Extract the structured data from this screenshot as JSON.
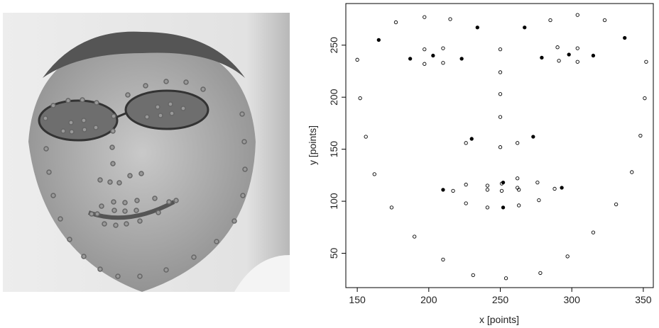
{
  "chart_data": {
    "type": "scatter",
    "xlabel": "x [points]",
    "ylabel": "y [points]",
    "xlim": [
      142,
      357
    ],
    "ylim": [
      17,
      290
    ],
    "xticks": [
      150,
      200,
      250,
      300,
      350
    ],
    "yticks": [
      50,
      100,
      150,
      200,
      250
    ],
    "series": [
      {
        "color": "#000000",
        "marker": "open",
        "x": [
          150,
          152,
          156,
          162,
          174,
          190,
          210,
          231,
          254,
          278,
          297,
          315,
          331,
          342,
          348,
          351,
          352,
          177,
          197,
          215,
          285,
          304,
          323,
          197,
          197,
          210,
          210,
          250,
          250,
          250,
          250,
          250,
          290,
          291,
          304,
          304,
          226,
          262,
          241,
          241,
          241,
          226,
          217,
          226,
          251,
          251,
          262,
          262,
          263,
          263,
          276,
          277,
          288
        ],
        "values": [
          236,
          199,
          162,
          126,
          94,
          66,
          44,
          29,
          26,
          31,
          47,
          70,
          97,
          128,
          163,
          199,
          234,
          272,
          277,
          275,
          274,
          279,
          274,
          246,
          232,
          247,
          233,
          246,
          224,
          203,
          181,
          152,
          248,
          235,
          247,
          234,
          156,
          156,
          115,
          111,
          94,
          98,
          110,
          116,
          117,
          110,
          122,
          113,
          111,
          96,
          118,
          101,
          112
        ]
      },
      {
        "color": "#000000",
        "marker": "filled",
        "x": [
          165,
          187,
          203,
          223,
          234,
          267,
          279,
          298,
          315,
          337,
          230,
          273,
          210,
          252,
          252,
          293
        ],
        "values": [
          255,
          237,
          240,
          237,
          267,
          267,
          238,
          241,
          240,
          257,
          160,
          162,
          111,
          118,
          94,
          113
        ]
      }
    ]
  }
}
